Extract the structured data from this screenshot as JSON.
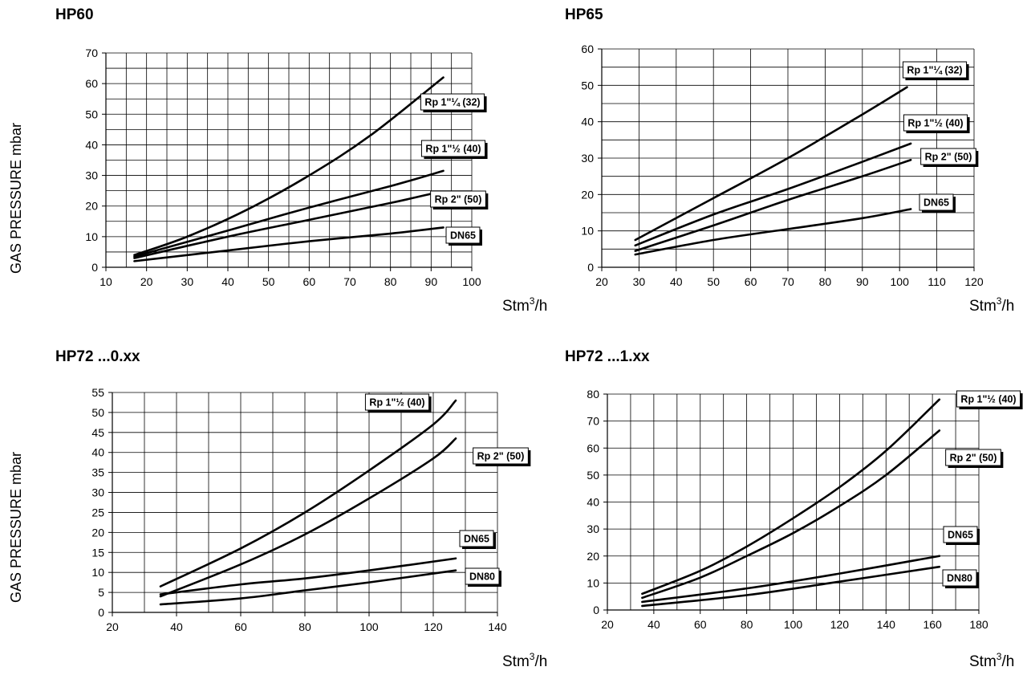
{
  "y_axis_label": "GAS PRESSURE mbar",
  "x_unit": "Stm",
  "x_unit_sup": "3",
  "x_unit_tail": "/h",
  "chart_data": [
    {
      "type": "line",
      "title": "HP60",
      "xlim": [
        10,
        100
      ],
      "xticks": [
        10,
        20,
        30,
        40,
        50,
        60,
        70,
        80,
        90,
        100
      ],
      "xminor": true,
      "ylim": [
        0,
        70
      ],
      "yticks": [
        0,
        10,
        20,
        30,
        40,
        50,
        60,
        70
      ],
      "yminor": true,
      "grid": true,
      "series": [
        {
          "name": "Rp 1\"¼ (32)",
          "x": [
            17,
            30,
            45,
            60,
            75,
            93
          ],
          "y": [
            4,
            10,
            19,
            30,
            43,
            62
          ]
        },
        {
          "name": "Rp 1\"½ (40)",
          "x": [
            17,
            40,
            60,
            80,
            93
          ],
          "y": [
            3.5,
            12,
            19.5,
            26.5,
            31.5
          ]
        },
        {
          "name": "Rp 2\" (50)",
          "x": [
            17,
            40,
            60,
            80,
            90
          ],
          "y": [
            3,
            10,
            15.5,
            21,
            24
          ]
        },
        {
          "name": "DN65",
          "x": [
            17,
            40,
            60,
            80,
            93
          ],
          "y": [
            2,
            5.5,
            8.5,
            11,
            13
          ]
        }
      ]
    },
    {
      "type": "line",
      "title": "HP65",
      "xlim": [
        20,
        120
      ],
      "xticks": [
        20,
        30,
        40,
        50,
        60,
        70,
        80,
        90,
        100,
        110,
        120
      ],
      "xminor": false,
      "ylim": [
        0,
        60
      ],
      "yticks": [
        0,
        10,
        20,
        30,
        40,
        50,
        60
      ],
      "yminor": true,
      "grid": true,
      "series": [
        {
          "name": "Rp 1\"¼ (32)",
          "x": [
            29,
            50,
            70,
            90,
            102
          ],
          "y": [
            7.5,
            19,
            30,
            42,
            49.5
          ]
        },
        {
          "name": "Rp 1\"½ (40)",
          "x": [
            29,
            50,
            70,
            90,
            103
          ],
          "y": [
            6,
            14.5,
            21.5,
            29,
            34
          ]
        },
        {
          "name": "Rp 2\" (50)",
          "x": [
            29,
            50,
            70,
            90,
            103
          ],
          "y": [
            4.5,
            11.5,
            18.5,
            25,
            29.5
          ]
        },
        {
          "name": "DN65",
          "x": [
            29,
            50,
            70,
            90,
            103
          ],
          "y": [
            3.5,
            7.5,
            10.5,
            13.5,
            16
          ]
        }
      ]
    },
    {
      "type": "line",
      "title": "HP72 ...0.xx",
      "xlim": [
        20,
        140
      ],
      "xticks": [
        20,
        40,
        60,
        80,
        100,
        120,
        140
      ],
      "xminor": true,
      "ylim": [
        0,
        55
      ],
      "yticks": [
        0,
        5,
        10,
        15,
        20,
        25,
        30,
        35,
        40,
        45,
        50,
        55
      ],
      "yminor": false,
      "grid": true,
      "series": [
        {
          "name": "Rp 1\"½ (40)",
          "x": [
            35,
            60,
            80,
            100,
            120,
            127
          ],
          "y": [
            6.5,
            16,
            25,
            35.5,
            47,
            53
          ]
        },
        {
          "name": "Rp 2\" (50)",
          "x": [
            35,
            60,
            80,
            100,
            120,
            127
          ],
          "y": [
            4,
            12,
            19.5,
            28.5,
            38.5,
            43.5
          ]
        },
        {
          "name": "DN65",
          "x": [
            35,
            60,
            80,
            100,
            127
          ],
          "y": [
            4.5,
            7,
            8.5,
            10.5,
            13.5
          ]
        },
        {
          "name": "DN80",
          "x": [
            35,
            60,
            80,
            100,
            127
          ],
          "y": [
            2,
            3.5,
            5.5,
            7.5,
            10.5
          ]
        }
      ]
    },
    {
      "type": "line",
      "title": "HP72 ...1.xx",
      "xlim": [
        20,
        180
      ],
      "xticks": [
        20,
        40,
        60,
        80,
        100,
        120,
        140,
        160,
        180
      ],
      "xminor": true,
      "ylim": [
        0,
        80
      ],
      "yticks": [
        0,
        10,
        20,
        30,
        40,
        50,
        60,
        70,
        80
      ],
      "yminor": false,
      "grid": true,
      "series": [
        {
          "name": "Rp 1\"½ (40)",
          "x": [
            35,
            60,
            80,
            100,
            120,
            140,
            163
          ],
          "y": [
            6,
            14.5,
            23.5,
            34,
            45.5,
            59,
            78
          ]
        },
        {
          "name": "Rp 2\" (50)",
          "x": [
            35,
            60,
            80,
            100,
            120,
            140,
            163
          ],
          "y": [
            4.5,
            12,
            20,
            28.5,
            38.5,
            50,
            66.5
          ]
        },
        {
          "name": "DN65",
          "x": [
            35,
            80,
            120,
            163
          ],
          "y": [
            3,
            8,
            13.5,
            20
          ]
        },
        {
          "name": "DN80",
          "x": [
            35,
            80,
            120,
            163
          ],
          "y": [
            1.5,
            5.5,
            10.5,
            16
          ]
        }
      ]
    }
  ]
}
